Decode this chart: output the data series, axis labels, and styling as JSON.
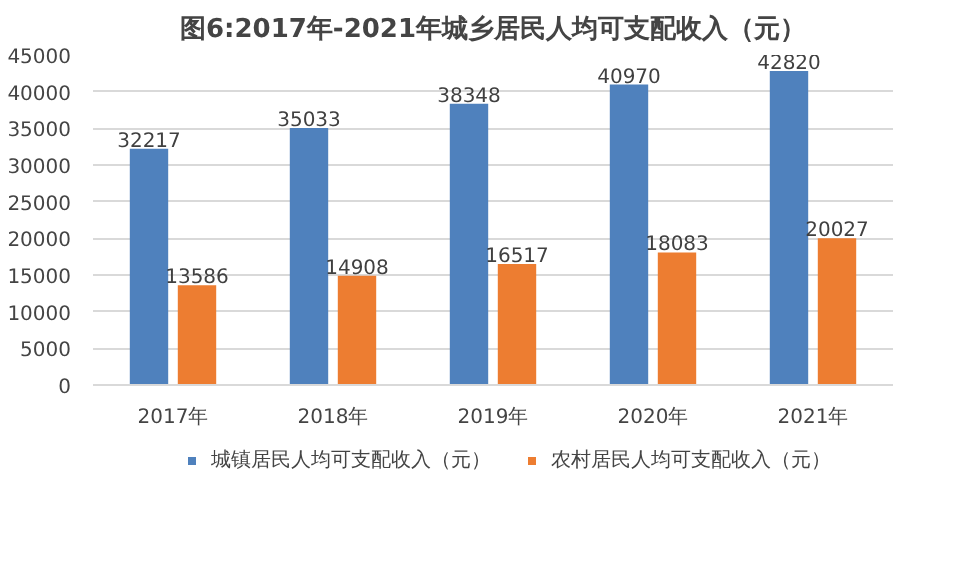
{
  "chart_data": {
    "type": "bar",
    "title": "图6:2017年-2021年城乡居民人均可支配收入（元）",
    "categories": [
      "2017年",
      "2018年",
      "2019年",
      "2020年",
      "2021年"
    ],
    "series": [
      {
        "name": "城镇居民人均可支配收入（元）",
        "color": "#4f81bd",
        "values": [
          32217,
          35033,
          38348,
          40970,
          42820
        ]
      },
      {
        "name": "农村居民人均可支配收入（元）",
        "color": "#ed7d31",
        "values": [
          13586,
          14908,
          16517,
          18083,
          20027
        ]
      }
    ],
    "ylim": [
      0,
      45000
    ],
    "yticks": [
      0,
      5000,
      10000,
      15000,
      20000,
      25000,
      30000,
      35000,
      40000,
      45000
    ],
    "grid": "y",
    "legend": "bottom",
    "data_labels": true
  }
}
